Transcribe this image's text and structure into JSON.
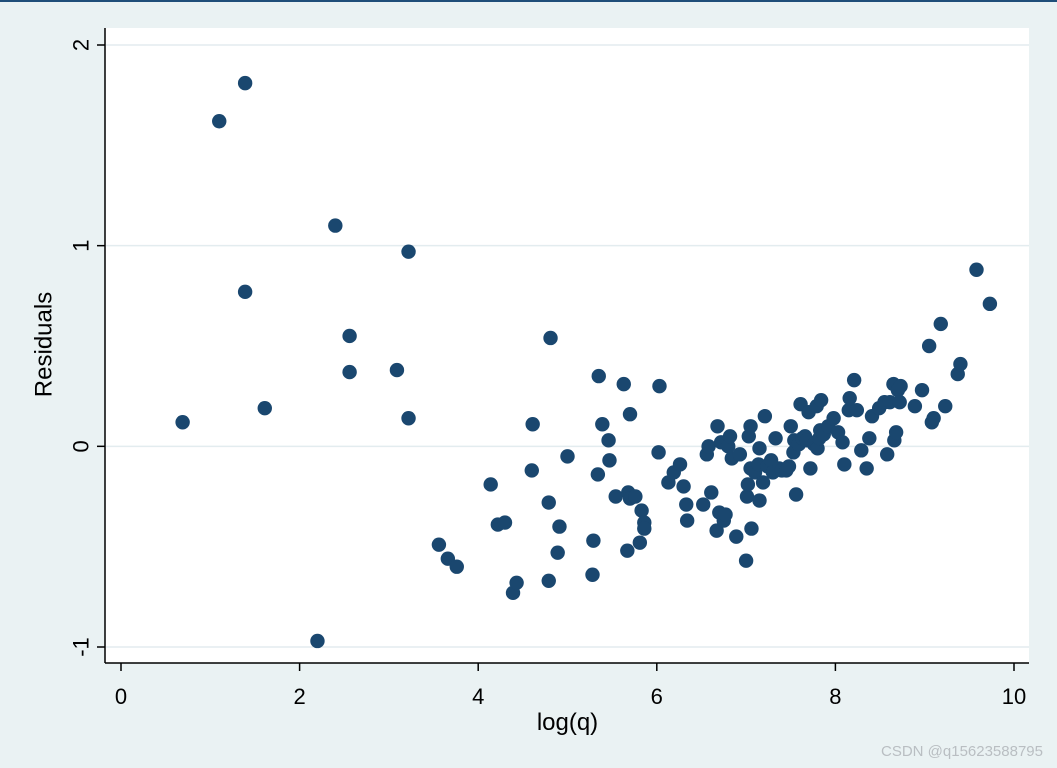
{
  "chart_data": {
    "type": "scatter",
    "title": "",
    "xlabel": "log(q)",
    "ylabel": "Residuals",
    "xlim": [
      0,
      10
    ],
    "ylim": [
      -1,
      2
    ],
    "xticks": [
      "0",
      "2",
      "4",
      "6",
      "8",
      "10"
    ],
    "yticks": [
      "-1",
      "0",
      "1",
      "2"
    ],
    "grid": "horizontal",
    "marker_color": "#1a476f",
    "background_color": "#ffffff",
    "points": [
      [
        0.69,
        0.12
      ],
      [
        1.1,
        1.62
      ],
      [
        1.39,
        1.81
      ],
      [
        1.39,
        0.77
      ],
      [
        1.61,
        0.19
      ],
      [
        2.2,
        -0.97
      ],
      [
        2.4,
        1.1
      ],
      [
        2.56,
        0.55
      ],
      [
        2.56,
        0.37
      ],
      [
        3.09,
        0.38
      ],
      [
        3.22,
        0.97
      ],
      [
        3.22,
        0.14
      ],
      [
        3.56,
        -0.49
      ],
      [
        3.66,
        -0.56
      ],
      [
        3.76,
        -0.6
      ],
      [
        4.14,
        -0.19
      ],
      [
        4.22,
        -0.39
      ],
      [
        4.3,
        -0.38
      ],
      [
        4.39,
        -0.73
      ],
      [
        4.43,
        -0.68
      ],
      [
        4.6,
        -0.12
      ],
      [
        4.61,
        0.11
      ],
      [
        4.79,
        -0.28
      ],
      [
        4.79,
        -0.67
      ],
      [
        4.81,
        0.54
      ],
      [
        4.89,
        -0.53
      ],
      [
        4.91,
        -0.4
      ],
      [
        5.0,
        -0.05
      ],
      [
        5.28,
        -0.64
      ],
      [
        5.29,
        -0.47
      ],
      [
        5.34,
        -0.14
      ],
      [
        5.35,
        0.35
      ],
      [
        5.39,
        0.11
      ],
      [
        5.46,
        0.03
      ],
      [
        5.47,
        -0.07
      ],
      [
        5.54,
        -0.25
      ],
      [
        5.63,
        0.31
      ],
      [
        5.67,
        -0.52
      ],
      [
        5.68,
        -0.23
      ],
      [
        5.7,
        -0.26
      ],
      [
        5.7,
        0.16
      ],
      [
        5.76,
        -0.25
      ],
      [
        5.81,
        -0.48
      ],
      [
        5.83,
        -0.32
      ],
      [
        5.86,
        -0.38
      ],
      [
        5.86,
        -0.41
      ],
      [
        6.02,
        -0.03
      ],
      [
        6.03,
        0.3
      ],
      [
        6.13,
        -0.18
      ],
      [
        6.19,
        -0.13
      ],
      [
        6.26,
        -0.09
      ],
      [
        6.3,
        -0.2
      ],
      [
        6.33,
        -0.29
      ],
      [
        6.34,
        -0.37
      ],
      [
        6.52,
        -0.29
      ],
      [
        6.56,
        -0.04
      ],
      [
        6.58,
        0.0
      ],
      [
        6.61,
        -0.23
      ],
      [
        6.67,
        -0.42
      ],
      [
        6.68,
        0.1
      ],
      [
        6.7,
        -0.33
      ],
      [
        6.72,
        0.02
      ],
      [
        6.75,
        -0.37
      ],
      [
        6.77,
        -0.34
      ],
      [
        6.8,
        0.0
      ],
      [
        6.82,
        0.05
      ],
      [
        6.84,
        -0.06
      ],
      [
        6.89,
        -0.45
      ],
      [
        6.93,
        -0.04
      ],
      [
        7.0,
        -0.57
      ],
      [
        7.01,
        -0.25
      ],
      [
        7.02,
        -0.19
      ],
      [
        7.03,
        0.05
      ],
      [
        7.05,
        -0.11
      ],
      [
        7.05,
        0.1
      ],
      [
        7.06,
        -0.41
      ],
      [
        7.1,
        -0.13
      ],
      [
        7.14,
        -0.09
      ],
      [
        7.15,
        -0.27
      ],
      [
        7.15,
        -0.01
      ],
      [
        7.19,
        -0.18
      ],
      [
        7.21,
        0.15
      ],
      [
        7.24,
        -0.1
      ],
      [
        7.28,
        -0.07
      ],
      [
        7.3,
        -0.13
      ],
      [
        7.33,
        0.04
      ],
      [
        7.37,
        -0.11
      ],
      [
        7.4,
        -0.12
      ],
      [
        7.45,
        -0.12
      ],
      [
        7.48,
        -0.1
      ],
      [
        7.5,
        0.1
      ],
      [
        7.53,
        -0.03
      ],
      [
        7.54,
        0.03
      ],
      [
        7.56,
        -0.24
      ],
      [
        7.59,
        0.01
      ],
      [
        7.61,
        0.21
      ],
      [
        7.63,
        0.04
      ],
      [
        7.66,
        0.05
      ],
      [
        7.68,
        0.03
      ],
      [
        7.7,
        0.17
      ],
      [
        7.72,
        -0.11
      ],
      [
        7.76,
        0.01
      ],
      [
        7.79,
        0.2
      ],
      [
        7.8,
        -0.01
      ],
      [
        7.82,
        0.04
      ],
      [
        7.83,
        0.08
      ],
      [
        7.84,
        0.23
      ],
      [
        7.87,
        0.06
      ],
      [
        7.92,
        0.1
      ],
      [
        7.98,
        0.14
      ],
      [
        8.03,
        0.07
      ],
      [
        8.08,
        0.02
      ],
      [
        8.1,
        -0.09
      ],
      [
        8.15,
        0.18
      ],
      [
        8.16,
        0.24
      ],
      [
        8.21,
        0.33
      ],
      [
        8.24,
        0.18
      ],
      [
        8.29,
        -0.02
      ],
      [
        8.35,
        -0.11
      ],
      [
        8.38,
        0.04
      ],
      [
        8.41,
        0.15
      ],
      [
        8.49,
        0.19
      ],
      [
        8.55,
        0.22
      ],
      [
        8.58,
        -0.04
      ],
      [
        8.61,
        0.22
      ],
      [
        8.65,
        0.31
      ],
      [
        8.66,
        0.03
      ],
      [
        8.68,
        0.07
      ],
      [
        8.7,
        0.28
      ],
      [
        8.72,
        0.22
      ],
      [
        8.73,
        0.3
      ],
      [
        8.89,
        0.2
      ],
      [
        8.97,
        0.28
      ],
      [
        9.05,
        0.5
      ],
      [
        9.08,
        0.12
      ],
      [
        9.1,
        0.14
      ],
      [
        9.18,
        0.61
      ],
      [
        9.23,
        0.2
      ],
      [
        9.37,
        0.36
      ],
      [
        9.4,
        0.41
      ],
      [
        9.58,
        0.88
      ],
      [
        9.73,
        0.71
      ]
    ]
  },
  "watermark": "CSDN @q15623588795"
}
